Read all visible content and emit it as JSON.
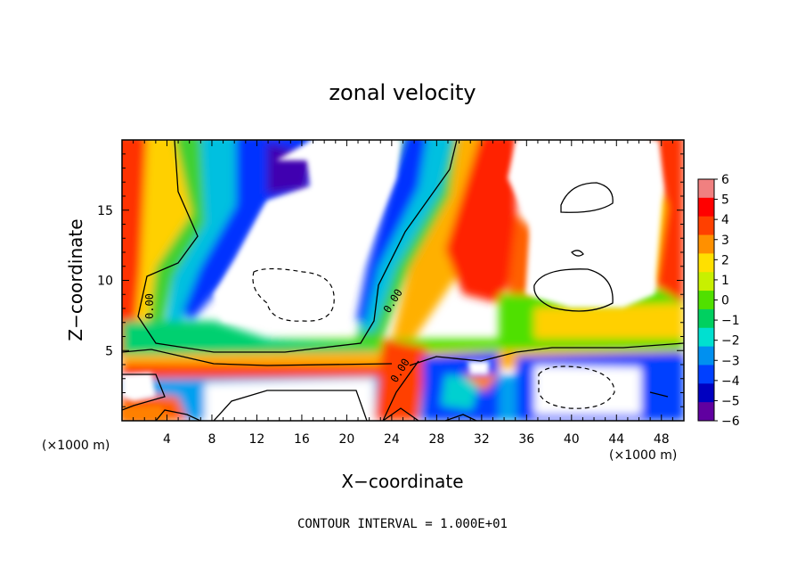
{
  "chart_data": {
    "type": "heatmap",
    "title": "zonal velocity",
    "xlabel": "X−coordinate",
    "ylabel": "Z−coordinate",
    "x_unit_label": "(×1000 m)",
    "z_unit_label": "(×1000 m)",
    "xlim": [
      0,
      50
    ],
    "ylim": [
      0,
      20
    ],
    "x_ticks": [
      4,
      8,
      12,
      16,
      20,
      24,
      28,
      32,
      36,
      40,
      44,
      48
    ],
    "y_ticks": [
      5,
      10,
      15
    ],
    "x_tick_labels": [
      "4",
      "8",
      "12",
      "16",
      "20",
      "24",
      "28",
      "32",
      "36",
      "40",
      "44",
      "48"
    ],
    "y_tick_labels": [
      "5",
      "10",
      "15"
    ],
    "colorbar": {
      "levels": [
        6,
        5,
        4,
        3,
        2,
        1,
        0,
        -1,
        -2,
        -3,
        -4,
        -5,
        -6
      ],
      "labels": [
        "6",
        "5",
        "4",
        "3",
        "2",
        "1",
        "0",
        "−1",
        "−2",
        "−3",
        "−4",
        "−5",
        "−6"
      ],
      "colors": [
        "#f08080",
        "#ff0000",
        "#ff4000",
        "#ff9000",
        "#ffe000",
        "#c8f000",
        "#50e000",
        "#00d060",
        "#00e0d0",
        "#0090f0",
        "#0040ff",
        "#0000c0",
        "#6000a0"
      ]
    },
    "contour_labels": [
      "0.00",
      "0.00",
      "0.00"
    ],
    "contour_interval_note": "CONTOUR INTERVAL =  1.000E+01"
  }
}
